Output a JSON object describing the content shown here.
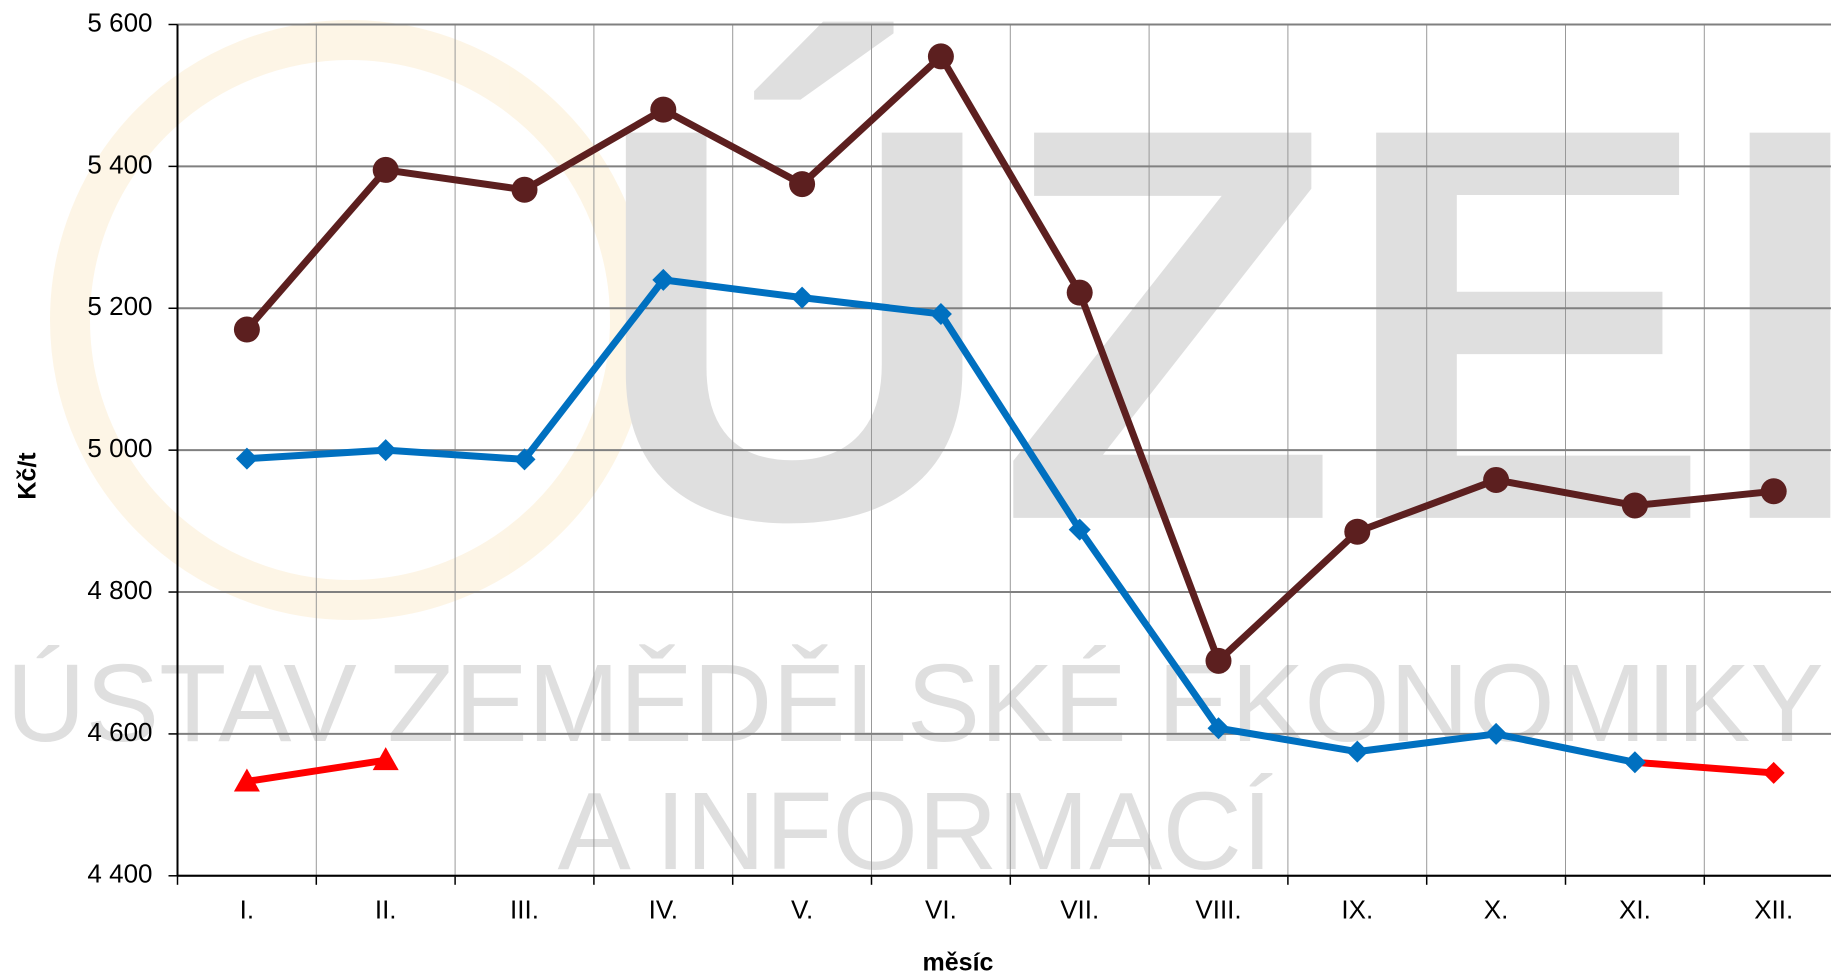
{
  "chart_data": {
    "type": "line",
    "ylabel": "Kč/t",
    "xlabel": "měsíc",
    "watermark": [
      "ÚZEI",
      "ÚSTAV ZEMĚDĚLSKÉ EKONOMIKY",
      "A INFORMACÍ"
    ],
    "categories": [
      "I.",
      "II.",
      "III.",
      "IV.",
      "V.",
      "VI.",
      "VII.",
      "VIII.",
      "IX.",
      "X.",
      "XI.",
      "XII."
    ],
    "ylim": [
      4400,
      5600
    ],
    "yticks": [
      {
        "value": 4400,
        "label": "4 400"
      },
      {
        "value": 4600,
        "label": "4 600"
      },
      {
        "value": 4800,
        "label": "4 800"
      },
      {
        "value": 5000,
        "label": "5 000"
      },
      {
        "value": 5200,
        "label": "5 200"
      },
      {
        "value": 5400,
        "label": "5 400"
      },
      {
        "value": 5600,
        "label": "5 600"
      }
    ],
    "grid": true,
    "series": [
      {
        "color": "#ff0000",
        "marker": "diamond",
        "values": [
          null,
          null,
          null,
          null,
          null,
          null,
          null,
          null,
          null,
          null,
          4560,
          4545
        ]
      },
      {
        "color": "#ff0000",
        "marker": "triangle",
        "values": [
          4533,
          4563,
          null,
          null,
          null,
          null,
          null,
          null,
          null,
          null,
          null,
          null
        ]
      },
      {
        "color": "#0070c0",
        "marker": "diamond",
        "values": [
          4988,
          5000,
          4987,
          5240,
          5215,
          5192,
          4888,
          4608,
          4575,
          4600,
          4560,
          null
        ]
      },
      {
        "color": "#5c1f1f",
        "marker": "circle",
        "values": [
          5170,
          5395,
          5367,
          5480,
          5375,
          5555,
          5222,
          4703,
          4885,
          4958,
          4922,
          4942
        ]
      }
    ]
  }
}
